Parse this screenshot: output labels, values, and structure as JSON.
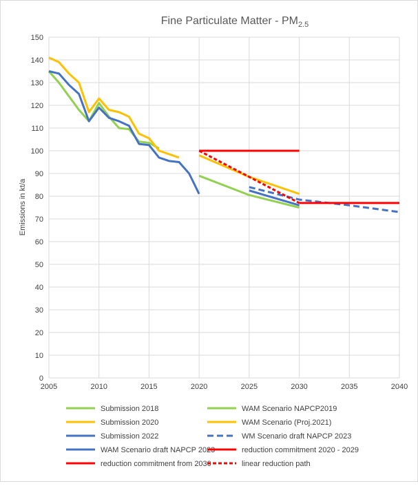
{
  "chart_data": {
    "type": "line",
    "title": "Fine Particulate Matter - PM",
    "title_subscript": "2.5",
    "ylabel": "Emissions in kt/a",
    "xlabel": "",
    "xlim": [
      2005,
      2040
    ],
    "ylim": [
      0,
      150
    ],
    "x_ticks": [
      2005,
      2010,
      2015,
      2020,
      2025,
      2030,
      2035,
      2040
    ],
    "y_ticks": [
      0,
      10,
      20,
      30,
      40,
      50,
      60,
      70,
      80,
      90,
      100,
      110,
      120,
      130,
      140,
      150
    ],
    "grid": true,
    "legend_position": "bottom",
    "series": [
      {
        "name": "Submission 2018",
        "color": "#92d050",
        "dash": false,
        "x": [
          2005,
          2006,
          2007,
          2008,
          2009,
          2010,
          2011,
          2012,
          2013,
          2014,
          2015,
          2016
        ],
        "y": [
          135,
          130,
          124,
          118,
          113,
          121,
          115,
          110,
          109.5,
          104,
          103.5,
          101
        ]
      },
      {
        "name": "WAM Scenario NAPCP2019",
        "color": "#92d050",
        "dash": false,
        "x": [
          2020,
          2025,
          2030
        ],
        "y": [
          89,
          80.5,
          75
        ]
      },
      {
        "name": "Submission 2020",
        "color": "#ffc000",
        "dash": false,
        "x": [
          2005,
          2006,
          2007,
          2008,
          2009,
          2010,
          2011,
          2012,
          2013,
          2014,
          2015,
          2016,
          2017,
          2018
        ],
        "y": [
          141,
          139,
          134,
          130,
          117,
          123,
          118,
          117,
          115,
          107.5,
          105.5,
          100,
          98.5,
          97
        ]
      },
      {
        "name": "WAM Scenario (Proj.2021)",
        "color": "#ffc000",
        "dash": false,
        "x": [
          2020,
          2025,
          2030
        ],
        "y": [
          98,
          88.5,
          81
        ]
      },
      {
        "name": "Submission 2022",
        "color": "#4472c4",
        "dash": false,
        "x": [
          2005,
          2006,
          2007,
          2008,
          2009,
          2010,
          2011,
          2012,
          2013,
          2014,
          2015,
          2016,
          2017,
          2018,
          2019,
          2020
        ],
        "y": [
          135,
          134,
          129,
          125,
          113,
          119,
          114.5,
          113,
          111,
          103,
          102.5,
          97,
          95.5,
          95,
          90,
          81
        ]
      },
      {
        "name": "WM Scenario draft NAPCP 2023",
        "color": "#4472c4",
        "dash": true,
        "x": [
          2025,
          2030,
          2035,
          2040
        ],
        "y": [
          84,
          78.5,
          76,
          73
        ]
      },
      {
        "name": "WAM Scenario draft NAPCP 2023",
        "color": "#4472c4",
        "dash": false,
        "x": [
          2025,
          2030
        ],
        "y": [
          82.5,
          76
        ]
      },
      {
        "name": "reduction commitment 2020 - 2029",
        "color": "#ff0000",
        "dash": false,
        "x": [
          2020,
          2030
        ],
        "y": [
          100,
          100
        ]
      },
      {
        "name": "reduction commitment from 2030",
        "color": "#ff0000",
        "dash": false,
        "x": [
          2030,
          2040
        ],
        "y": [
          77,
          77
        ]
      },
      {
        "name": "linear reduction path",
        "color": "#ff0000",
        "dash": true,
        "x": [
          2020,
          2030
        ],
        "y": [
          100,
          77
        ]
      }
    ]
  }
}
